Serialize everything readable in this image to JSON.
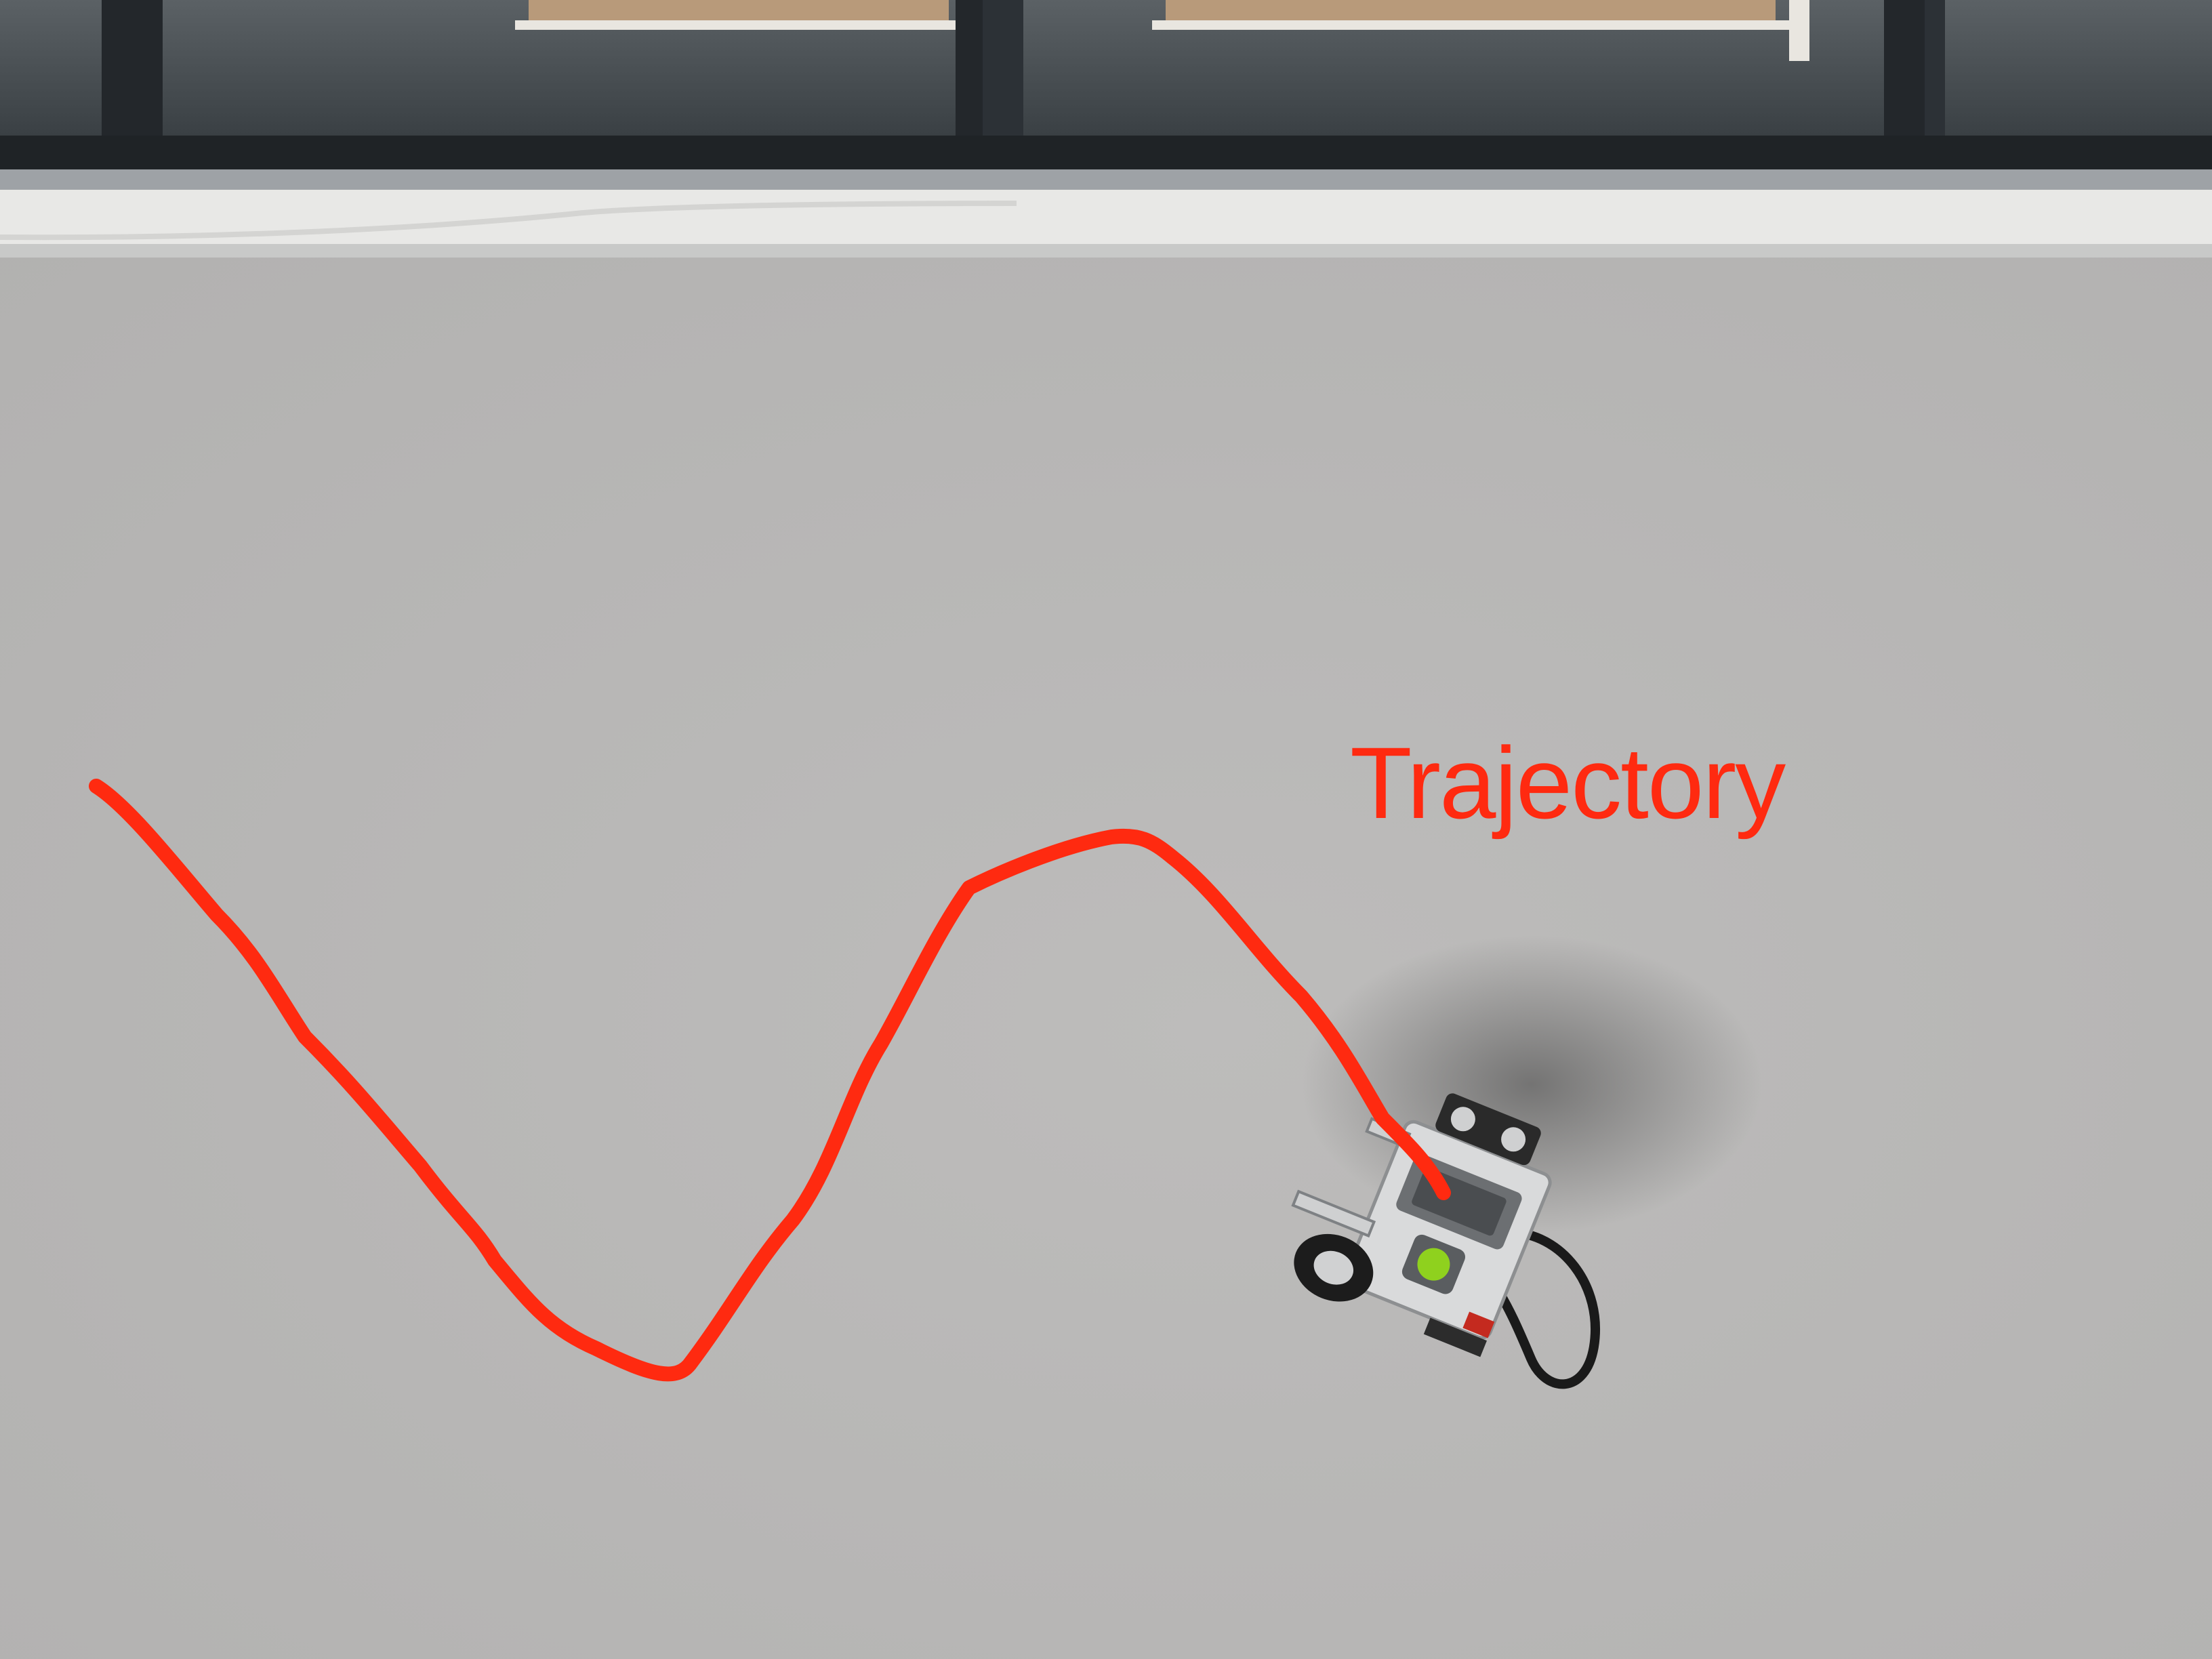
{
  "annotation": {
    "label": "Trajectory",
    "color": "#ff2a10"
  },
  "scene": {
    "floor_color": "#b9b8b7",
    "window_frame_color": "#2c3136",
    "sill_color": "#e8e8e6"
  },
  "robot": {
    "body_color": "#d9dadb",
    "accent_color": "#8fd11e",
    "cable_color": "#1a1a1a"
  }
}
